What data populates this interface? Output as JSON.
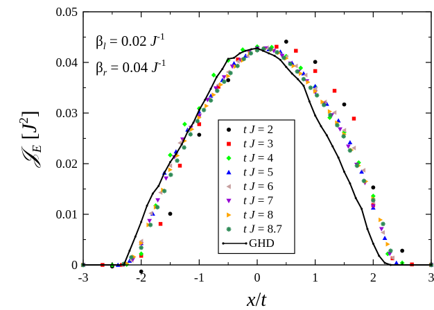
{
  "chart_data": {
    "type": "scatter",
    "xlabel": "x/t",
    "ylabel": "𝒥_E [J²]",
    "ylabel_parts": {
      "symbol": "𝒥",
      "subscript": "E",
      "unit_open": "[",
      "unit": "J",
      "unit_sup": "2",
      "unit_close": "]"
    },
    "xlabel_parts": {
      "num": "x",
      "sep": "/",
      "den": "t"
    },
    "xlim": [
      -3,
      3
    ],
    "ylim": [
      0,
      0.05
    ],
    "xticks": [
      -3,
      -2,
      -1,
      0,
      1,
      2,
      3
    ],
    "xtick_labels": [
      "-3",
      "-2",
      "-1",
      "0",
      "1",
      "2",
      "3"
    ],
    "yticks": [
      0,
      0.01,
      0.02,
      0.03,
      0.04,
      0.05
    ],
    "ytick_labels": [
      "0",
      "0.01",
      "0.02",
      "0.03",
      "0.04",
      "0.05"
    ],
    "annotations": [
      {
        "greek": "β",
        "sub": "l",
        "text": " = 0.02 ",
        "unit": "J",
        "sup": "-1"
      },
      {
        "greek": "β",
        "sub": "r",
        "text": " = 0.04 ",
        "unit": "J",
        "sup": "-1"
      }
    ],
    "legend_position": "center",
    "series": [
      {
        "name": "t J = 2",
        "color": "#000000",
        "marker": "circle",
        "x": [
          -3.0,
          -2.5,
          -2.0,
          -1.5,
          -1.0,
          -0.5,
          0.0,
          0.5,
          1.0,
          1.5,
          2.0,
          2.5,
          3.0
        ],
        "y": [
          0.0,
          -0.0003,
          -0.0013,
          0.0101,
          0.0257,
          0.0365,
          0.0428,
          0.0441,
          0.0401,
          0.0317,
          0.0153,
          0.0028,
          0.0001
        ]
      },
      {
        "name": "t J = 3",
        "color": "#ff0000",
        "marker": "square",
        "x": [
          -3.0,
          -2.667,
          -2.333,
          -2.0,
          -1.667,
          -1.333,
          -1.0,
          -0.667,
          -0.333,
          0.0,
          0.333,
          0.667,
          1.0,
          1.333,
          1.667,
          2.0,
          2.333,
          2.667,
          3.0
        ],
        "y": [
          0.0,
          0.0,
          0.0,
          0.0018,
          0.0081,
          0.0196,
          0.0278,
          0.0352,
          0.0406,
          0.0429,
          0.0431,
          0.0423,
          0.0383,
          0.0344,
          0.0289,
          0.0118,
          0.0013,
          0.0001,
          0.0
        ]
      },
      {
        "name": "t J = 4",
        "color": "#00ff00",
        "marker": "diamond",
        "x": [
          -3.0,
          -2.5,
          -2.25,
          -2.0,
          -1.75,
          -1.5,
          -1.25,
          -1.0,
          -0.75,
          -0.5,
          -0.25,
          0.0,
          0.25,
          0.5,
          0.75,
          1.0,
          1.25,
          1.5,
          1.75,
          2.0,
          2.25,
          2.5,
          3.0
        ],
        "y": [
          0.0,
          0.0,
          0.0001,
          0.0022,
          0.0117,
          0.0217,
          0.0278,
          0.0309,
          0.0375,
          0.0404,
          0.0425,
          0.0431,
          0.043,
          0.0412,
          0.0389,
          0.0352,
          0.0291,
          0.0262,
          0.0202,
          0.0136,
          0.0022,
          0.0004,
          0.0
        ]
      },
      {
        "name": "t J = 5",
        "color": "#0000ff",
        "marker": "triangle-up",
        "x": [
          -3.0,
          -2.4,
          -2.2,
          -2.0,
          -1.8,
          -1.6,
          -1.4,
          -1.2,
          -1.0,
          -0.8,
          -0.6,
          -0.4,
          -0.2,
          0.0,
          0.2,
          0.4,
          0.6,
          0.8,
          1.0,
          1.2,
          1.4,
          1.6,
          1.8,
          2.0,
          2.2,
          2.4,
          3.0
        ],
        "y": [
          0.0,
          0.0,
          0.0008,
          0.0043,
          0.0101,
          0.0182,
          0.0224,
          0.0267,
          0.0302,
          0.0334,
          0.0365,
          0.0398,
          0.0413,
          0.0428,
          0.0426,
          0.0421,
          0.0399,
          0.0378,
          0.0353,
          0.0318,
          0.0285,
          0.0242,
          0.0184,
          0.0113,
          0.0053,
          0.0004,
          0.0
        ]
      },
      {
        "name": "t J = 6",
        "color": "#c8a0a0",
        "marker": "triangle-left",
        "x": [
          -3.0,
          -2.333,
          -2.167,
          -2.0,
          -1.833,
          -1.667,
          -1.5,
          -1.333,
          -1.167,
          -1.0,
          -0.833,
          -0.667,
          -0.5,
          -0.333,
          -0.167,
          0.0,
          0.167,
          0.333,
          0.5,
          0.667,
          0.833,
          1.0,
          1.167,
          1.333,
          1.5,
          1.667,
          1.833,
          2.0,
          2.167,
          2.333,
          3.0
        ],
        "y": [
          0.0,
          0.0,
          0.0009,
          0.0047,
          0.0102,
          0.0143,
          0.0196,
          0.0241,
          0.0268,
          0.0296,
          0.0328,
          0.0356,
          0.0381,
          0.0402,
          0.0413,
          0.0426,
          0.0429,
          0.042,
          0.0411,
          0.0393,
          0.0375,
          0.0348,
          0.0322,
          0.0301,
          0.0266,
          0.0231,
          0.0187,
          0.0124,
          0.0064,
          0.0014,
          0.0
        ]
      },
      {
        "name": "t J = 7",
        "color": "#9400d3",
        "marker": "triangle-down",
        "x": [
          -3.0,
          -2.286,
          -2.143,
          -2.0,
          -1.857,
          -1.714,
          -1.571,
          -1.429,
          -1.286,
          -1.143,
          -1.0,
          -0.857,
          -0.714,
          -0.571,
          -0.429,
          -0.286,
          -0.143,
          0.0,
          0.143,
          0.286,
          0.429,
          0.571,
          0.714,
          0.857,
          1.0,
          1.143,
          1.286,
          1.429,
          1.571,
          1.714,
          1.857,
          2.0,
          2.143,
          2.286,
          3.0
        ],
        "y": [
          0.0,
          0.0001,
          0.0011,
          0.0041,
          0.0087,
          0.0128,
          0.0171,
          0.0213,
          0.0248,
          0.0271,
          0.0294,
          0.0326,
          0.0349,
          0.0371,
          0.0392,
          0.0405,
          0.0421,
          0.0427,
          0.0428,
          0.0423,
          0.0413,
          0.0398,
          0.0382,
          0.0363,
          0.0341,
          0.0319,
          0.0296,
          0.0268,
          0.0234,
          0.0198,
          0.0162,
          0.0116,
          0.0071,
          0.0022,
          0.0
        ]
      },
      {
        "name": "t J = 8",
        "color": "#ffa500",
        "marker": "triangle-right",
        "x": [
          -3.0,
          -2.25,
          -2.125,
          -2.0,
          -1.875,
          -1.75,
          -1.625,
          -1.5,
          -1.375,
          -1.25,
          -1.125,
          -1.0,
          -0.875,
          -0.75,
          -0.625,
          -0.5,
          -0.375,
          -0.25,
          -0.125,
          0.0,
          0.125,
          0.25,
          0.375,
          0.5,
          0.625,
          0.75,
          0.875,
          1.0,
          1.125,
          1.25,
          1.375,
          1.5,
          1.625,
          1.75,
          1.875,
          2.0,
          2.125,
          2.25,
          3.0
        ],
        "y": [
          0.0,
          0.0003,
          0.0016,
          0.0043,
          0.0079,
          0.0114,
          0.0148,
          0.0188,
          0.0216,
          0.0245,
          0.0268,
          0.0291,
          0.0314,
          0.0336,
          0.0356,
          0.0373,
          0.0392,
          0.0404,
          0.0418,
          0.0425,
          0.0427,
          0.0425,
          0.0419,
          0.0408,
          0.0393,
          0.0378,
          0.0361,
          0.0343,
          0.0322,
          0.0303,
          0.0281,
          0.0258,
          0.0227,
          0.0196,
          0.0165,
          0.0131,
          0.0089,
          0.0041,
          0.0
        ]
      },
      {
        "name": "t J = 8.7",
        "color": "#2e8b57",
        "marker": "star",
        "x": [
          -3.0,
          -2.3,
          -2.17,
          -2.0,
          -1.84,
          -1.72,
          -1.6,
          -1.49,
          -1.38,
          -1.26,
          -1.15,
          -1.03,
          -0.92,
          -0.8,
          -0.69,
          -0.57,
          -0.46,
          -0.34,
          -0.23,
          -0.11,
          0.0,
          0.11,
          0.23,
          0.34,
          0.46,
          0.57,
          0.69,
          0.8,
          0.92,
          1.03,
          1.15,
          1.26,
          1.38,
          1.49,
          1.6,
          1.72,
          1.84,
          2.0,
          2.17,
          2.3,
          3.0
        ],
        "y": [
          0.0,
          0.0002,
          0.0015,
          0.0034,
          0.0079,
          0.0114,
          0.0146,
          0.0178,
          0.0206,
          0.0232,
          0.0258,
          0.0284,
          0.0306,
          0.0325,
          0.0344,
          0.0362,
          0.0379,
          0.0393,
          0.0407,
          0.0418,
          0.0424,
          0.0427,
          0.0426,
          0.042,
          0.0409,
          0.0397,
          0.0382,
          0.0367,
          0.035,
          0.0335,
          0.0316,
          0.0296,
          0.0276,
          0.0254,
          0.0226,
          0.0196,
          0.0166,
          0.0128,
          0.0081,
          0.0028,
          0.0
        ]
      },
      {
        "name": "GHD",
        "color": "#000000",
        "marker": "line",
        "x": [
          -3.0,
          -2.3,
          -2.2,
          -2.1,
          -2.0,
          -1.9,
          -1.8,
          -1.7,
          -1.6,
          -1.5,
          -1.4,
          -1.3,
          -1.2,
          -1.1,
          -1.0,
          -0.9,
          -0.8,
          -0.7,
          -0.6,
          -0.5,
          -0.4,
          -0.3,
          -0.2,
          -0.1,
          0.0,
          0.1,
          0.2,
          0.3,
          0.4,
          0.5,
          0.6,
          0.7,
          0.8,
          0.9,
          1.0,
          1.1,
          1.2,
          1.3,
          1.4,
          1.5,
          1.6,
          1.7,
          1.8,
          1.9,
          2.0,
          2.1,
          2.2,
          2.3,
          3.0
        ],
        "y": [
          0.0,
          0.0,
          0.0028,
          0.0056,
          0.0085,
          0.0117,
          0.0141,
          0.0156,
          0.0182,
          0.0203,
          0.0219,
          0.0238,
          0.0263,
          0.0281,
          0.0306,
          0.0326,
          0.0348,
          0.0371,
          0.0387,
          0.0407,
          0.0409,
          0.0418,
          0.0423,
          0.0426,
          0.0428,
          0.0423,
          0.0418,
          0.0413,
          0.0405,
          0.0391,
          0.0378,
          0.0367,
          0.0354,
          0.0323,
          0.0295,
          0.0274,
          0.0256,
          0.0234,
          0.0212,
          0.0184,
          0.0161,
          0.0132,
          0.0111,
          0.0071,
          0.0042,
          0.0018,
          0.0004,
          0.0,
          0.0
        ]
      }
    ]
  }
}
